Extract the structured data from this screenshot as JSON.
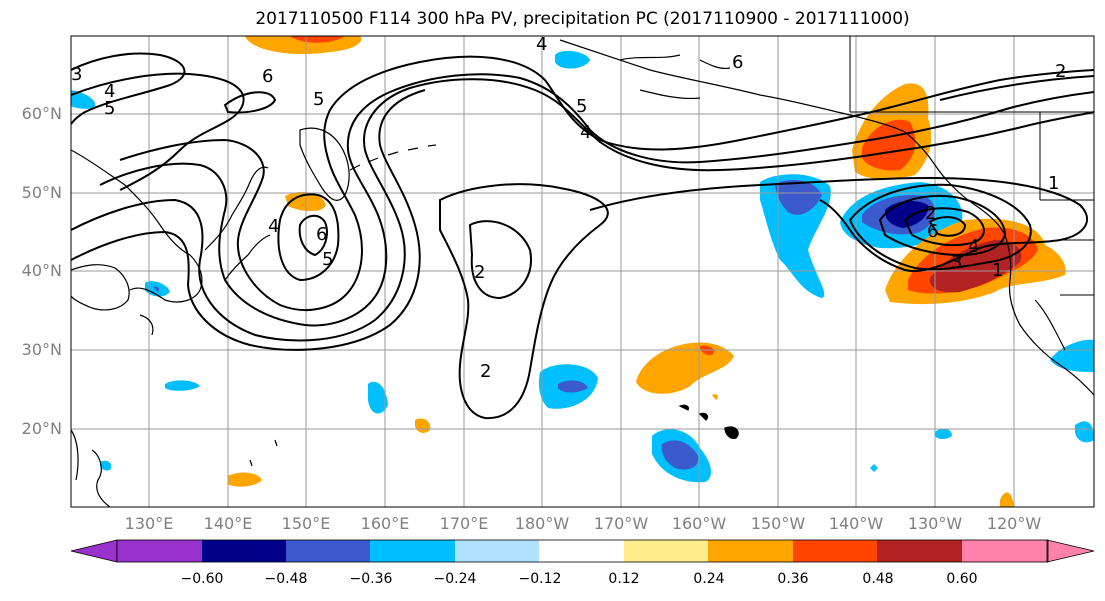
{
  "title": "2017110500 F114 300 hPa PV, precipitation PC (2017110900 - 2017111000)",
  "lat_labels": [
    "60°N",
    "50°N",
    "40°N",
    "30°N",
    "20°N"
  ],
  "lon_labels": [
    "130°E",
    "140°E",
    "150°E",
    "160°E",
    "170°E",
    "180°W",
    "170°W",
    "160°W",
    "150°W",
    "140°W",
    "130°W",
    "120°W"
  ],
  "contour_labels": [
    "6",
    "5",
    "4",
    "3",
    "2",
    "1"
  ],
  "colorbar": {
    "tick_labels": [
      "−0.60",
      "−0.48",
      "−0.36",
      "−0.24",
      "−0.12",
      "0.12",
      "0.24",
      "0.36",
      "0.48",
      "0.60"
    ],
    "colors": [
      "#9932cc",
      "#00008b",
      "#3a5acd",
      "#00bfff",
      "#b0e2ff",
      "#ffffff",
      "#ffec8b",
      "#ffa500",
      "#ff4500",
      "#b22222",
      "#ff82ab"
    ]
  }
}
